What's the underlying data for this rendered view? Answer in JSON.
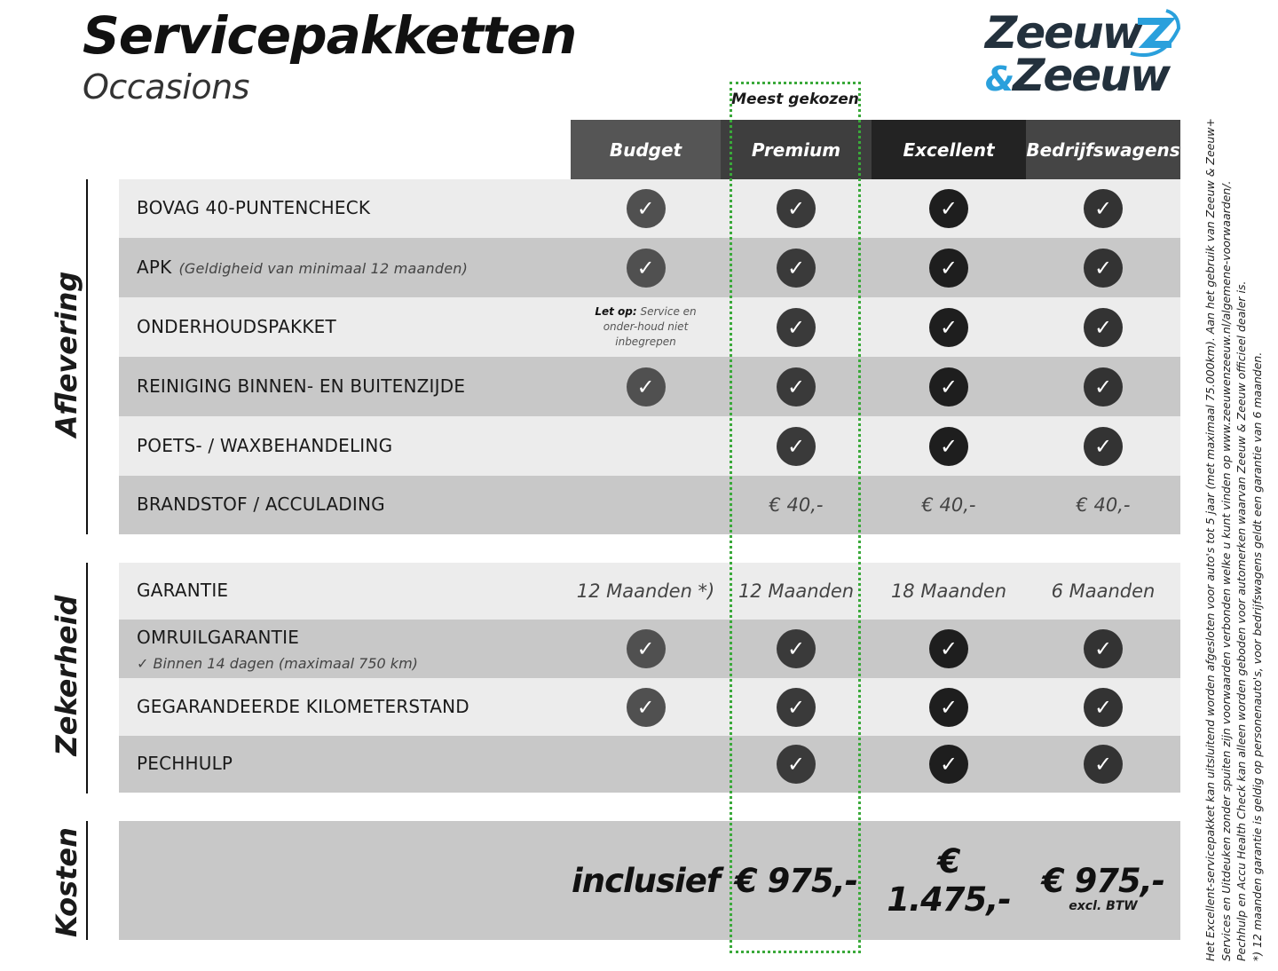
{
  "title": "Servicepakketten",
  "subtitle": "Occasions",
  "logo": {
    "line1": "Zeeuw",
    "amp": "&",
    "line2": "Zeeuw",
    "accent": "#2aa0dc"
  },
  "most_chosen": "Meest gekozen",
  "columns": [
    {
      "label": "Budget",
      "bg": "#555555",
      "chk": "#505050"
    },
    {
      "label": "Premium",
      "bg": "#3e3e3e",
      "chk": "#3a3a3a"
    },
    {
      "label": "Excellent",
      "bg": "#232323",
      "chk": "#1e1e1e"
    },
    {
      "label": "Bedrijfswagens",
      "bg": "#454545",
      "chk": "#333333"
    }
  ],
  "sections": [
    {
      "label": "Aflevering"
    },
    {
      "label": "Zekerheid"
    },
    {
      "label": "Kosten"
    }
  ],
  "rows": [
    {
      "label": "BOVAG 40-PUNTENCHECK",
      "cells": [
        "check",
        "check",
        "check",
        "check"
      ]
    },
    {
      "label": "APK",
      "note": "(Geldigheid van minimaal 12 maanden)",
      "cells": [
        "check",
        "check",
        "check",
        "check"
      ]
    },
    {
      "label": "ONDERHOUDSPAKKET",
      "cells": [
        "note",
        "check",
        "check",
        "check"
      ]
    },
    {
      "label": "REINIGING BINNEN- EN BUITENZIJDE",
      "cells": [
        "check",
        "check",
        "check",
        "check"
      ]
    },
    {
      "label": "POETS- / WAXBEHANDELING",
      "cells": [
        "",
        "check",
        "check",
        "check"
      ]
    },
    {
      "label": "BRANDSTOF / ACCULADING",
      "cells": [
        "",
        "€ 40,-",
        "€ 40,-",
        "€ 40,-"
      ]
    },
    {
      "label": "GARANTIE",
      "cells": [
        "12 Maanden *)",
        "12 Maanden",
        "18 Maanden",
        "6 Maanden"
      ]
    },
    {
      "label": "OMRUILGARANTIE",
      "sub": "✓   Binnen 14 dagen (maximaal 750 km)",
      "cells": [
        "check",
        "check",
        "check",
        "check"
      ]
    },
    {
      "label": "GEGARANDEERDE KILOMETERSTAND",
      "cells": [
        "check",
        "check",
        "check",
        "check"
      ]
    },
    {
      "label": "PECHHULP",
      "cells": [
        "",
        "check",
        "check",
        "check"
      ]
    }
  ],
  "budget_note": {
    "bold": "Let op:",
    "text": " Service en onder-houd niet inbegrepen"
  },
  "costs": {
    "cells": [
      "inclusief",
      "€ 975,-",
      "€ 1.475,-",
      "€ 975,-"
    ],
    "bedrijf_note": "excl. BTW"
  },
  "footnotes": [
    "Het Excellent-servicepakket kan uitsluitend worden afgesloten voor auto's tot 5 jaar (met maximaal 75.000km). Aan het gebruik van Zeeuw & Zeeuw+",
    "Services en Uitdeuken zonder spuiten zijn voorwaarden verbonden welke u kunt vinden op www.zeeuwenzeeuw.nl/algemene-voorwaarden/.",
    "Pechhulp en Accu Health Check kan alleen worden geboden voor automerken waarvan Zeeuw & Zeeuw officieel dealer is.",
    "*) 12 maanden garantie is geldig op personenauto's, voor bedrijfswagens geldt een garantie van 6 maanden."
  ]
}
